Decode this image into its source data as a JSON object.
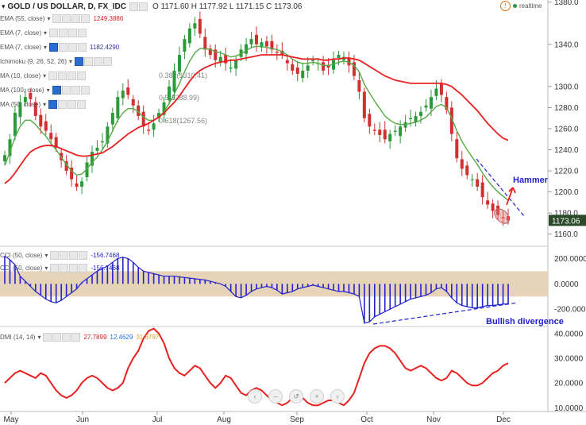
{
  "header": {
    "symbol": "GOLD / US DOLLAR, D, FX_IDC",
    "ohlc": "O 1171.60 H 1177.92 L 1171.15 C 1173.06",
    "realtime": "realtime"
  },
  "indicators": [
    {
      "name": "EMA (55, close)",
      "value": "1249.3886",
      "color": "#dd2222"
    },
    {
      "name": "EMA (7, close)",
      "value": "",
      "color": "#333333"
    },
    {
      "name": "EMA (7, close)",
      "value": "1182.4290",
      "color": "#333399"
    },
    {
      "name": "Ichimoku (9, 26, 52, 26)",
      "value": "",
      "color": "#333333"
    },
    {
      "name": "MA (10, close)",
      "value": "",
      "color": "#333333"
    },
    {
      "name": "MA (100, close)",
      "value": "",
      "color": "#333333"
    },
    {
      "name": "MA (50, close)",
      "value": "",
      "color": "#333333"
    }
  ],
  "cci_indicators": [
    {
      "name": "CCI (50, close)",
      "value": "-156.7468"
    },
    {
      "name": "CCI (50, close)",
      "value": "-156.7468"
    }
  ],
  "dmi_indicator": {
    "name": "DMI (14, 14)",
    "values": [
      "27.7899",
      "12.4629",
      "31.6797"
    ],
    "colors": [
      "#dd2222",
      "#2277dd",
      "#e8a020"
    ]
  },
  "annotations": {
    "hammer": "Hammer",
    "bullish": "Bullish divergence",
    "fib1": "0.382(1310.41)",
    "fib2": "0.5(1288.99)",
    "fib3": "0.618(1267.56)"
  },
  "last_price": "1173.06",
  "colors": {
    "bull": "#2a9a3a",
    "bear": "#d03030",
    "ema55": "#e82020",
    "ema_green": "#55aa44",
    "ema_blue": "#3344aa",
    "cci": "#2222cc",
    "dmi": "#e82020",
    "band": "#e6d3b8"
  },
  "chart_data": [
    {
      "type": "candlestick",
      "title": "GOLD / US DOLLAR, D, FX_IDC",
      "x_labels": [
        "May",
        "Jun",
        "Jul",
        "Aug",
        "Sep",
        "Oct",
        "Nov",
        "Dec"
      ],
      "y_ticks": [
        1160.0,
        1180.0,
        1200.0,
        1220.0,
        1240.0,
        1260.0,
        1280.0,
        1300.0,
        1340.0,
        1380.0
      ],
      "ylim": [
        1150,
        1382
      ],
      "ohlc_last": {
        "open": 1171.6,
        "high": 1177.92,
        "low": 1171.15,
        "close": 1173.06
      },
      "close_series": [
        1235,
        1250,
        1275,
        1285,
        1290,
        1288,
        1272,
        1262,
        1258,
        1250,
        1242,
        1230,
        1220,
        1212,
        1205,
        1210,
        1228,
        1238,
        1242,
        1248,
        1262,
        1275,
        1290,
        1296,
        1292,
        1282,
        1272,
        1262,
        1258,
        1265,
        1275,
        1285,
        1300,
        1315,
        1330,
        1345,
        1355,
        1360,
        1350,
        1335,
        1330,
        1325,
        1328,
        1322,
        1318,
        1325,
        1335,
        1340,
        1345,
        1340,
        1342,
        1338,
        1335,
        1332,
        1330,
        1322,
        1315,
        1312,
        1315,
        1320,
        1325,
        1322,
        1315,
        1318,
        1325,
        1330,
        1328,
        1320,
        1310,
        1295,
        1270,
        1262,
        1258,
        1254,
        1250,
        1255,
        1258,
        1262,
        1266,
        1270,
        1272,
        1276,
        1282,
        1290,
        1298,
        1292,
        1278,
        1255,
        1232,
        1222,
        1216,
        1212,
        1205,
        1195,
        1188,
        1182,
        1178,
        1175,
        1173
      ],
      "ema55_series": [
        1208,
        1212,
        1218,
        1225,
        1232,
        1238,
        1241,
        1243,
        1244,
        1244,
        1243,
        1241,
        1239,
        1237,
        1235,
        1234,
        1234,
        1235,
        1236,
        1237,
        1240,
        1243,
        1247,
        1251,
        1255,
        1258,
        1261,
        1263,
        1265,
        1268,
        1271,
        1275,
        1280,
        1285,
        1291,
        1298,
        1305,
        1311,
        1315,
        1318,
        1320,
        1322,
        1323,
        1324,
        1325,
        1325,
        1326,
        1327,
        1328,
        1329,
        1330,
        1330,
        1330,
        1330,
        1330,
        1329,
        1328,
        1327,
        1326,
        1326,
        1326,
        1326,
        1325,
        1325,
        1326,
        1326,
        1327,
        1327,
        1326,
        1325,
        1322,
        1319,
        1316,
        1313,
        1310,
        1308,
        1306,
        1305,
        1304,
        1303,
        1303,
        1303,
        1303,
        1303,
        1303,
        1303,
        1302,
        1300,
        1296,
        1292,
        1287,
        1282,
        1277,
        1271,
        1265,
        1260,
        1255,
        1251,
        1249
      ],
      "ema_green_series": [
        1225,
        1238,
        1252,
        1262,
        1268,
        1268,
        1264,
        1258,
        1253,
        1246,
        1240,
        1233,
        1226,
        1220,
        1216,
        1217,
        1222,
        1228,
        1233,
        1240,
        1248,
        1258,
        1268,
        1275,
        1279,
        1279,
        1276,
        1271,
        1268,
        1268,
        1271,
        1276,
        1284,
        1293,
        1303,
        1314,
        1324,
        1332,
        1336,
        1336,
        1335,
        1333,
        1332,
        1330,
        1328,
        1329,
        1331,
        1334,
        1337,
        1338,
        1338,
        1337,
        1336,
        1335,
        1333,
        1330,
        1326,
        1323,
        1322,
        1322,
        1323,
        1322,
        1320,
        1320,
        1321,
        1323,
        1324,
        1323,
        1320,
        1314,
        1302,
        1294,
        1286,
        1279,
        1272,
        1268,
        1265,
        1264,
        1264,
        1265,
        1266,
        1268,
        1271,
        1276,
        1281,
        1283,
        1280,
        1270,
        1258,
        1248,
        1240,
        1233,
        1226,
        1218,
        1211,
        1205,
        1200,
        1196,
        1192
      ]
    },
    {
      "type": "bar",
      "title": "CCI (50, close)",
      "y_ticks": [
        200.0,
        0.0,
        -200.0
      ],
      "ylim": [
        -330,
        290
      ],
      "band": [
        -100,
        100
      ],
      "values": [
        220,
        190,
        150,
        60,
        20,
        -20,
        -60,
        -90,
        -120,
        -140,
        -150,
        -130,
        -100,
        -70,
        -40,
        10,
        40,
        70,
        100,
        120,
        140,
        170,
        200,
        210,
        200,
        170,
        130,
        100,
        90,
        80,
        70,
        60,
        60,
        60,
        55,
        50,
        45,
        40,
        35,
        30,
        20,
        10,
        0,
        -20,
        -60,
        -100,
        -110,
        -90,
        -60,
        -40,
        -30,
        -20,
        -30,
        -50,
        -80,
        -70,
        -60,
        -40,
        -30,
        -20,
        -10,
        -20,
        -30,
        -40,
        -50,
        -60,
        -60,
        -70,
        -80,
        -100,
        -310,
        -300,
        -260,
        -240,
        -220,
        -200,
        -180,
        -160,
        -140,
        -120,
        -110,
        -100,
        -90,
        -70,
        -40,
        -30,
        -60,
        -110,
        -150,
        -170,
        -180,
        -190,
        -190,
        -180,
        -170,
        -170,
        -165,
        -160,
        -157
      ]
    },
    {
      "type": "line",
      "title": "DMI (14, 14)",
      "y_ticks": [
        40.0,
        30.0,
        20.0,
        10.0
      ],
      "ylim": [
        8.5,
        42.5
      ],
      "series": [
        {
          "name": "DMI (14, 14)",
          "values": [
            20,
            22,
            24,
            25,
            24,
            23,
            22,
            24,
            23,
            20,
            17,
            15,
            14,
            15,
            17,
            20,
            22,
            23,
            22,
            20,
            18,
            17,
            18,
            20,
            26,
            30,
            33,
            38,
            41,
            42,
            40,
            36,
            30,
            26,
            24,
            23,
            25,
            27,
            26,
            23,
            20,
            18,
            20,
            23,
            22,
            19,
            16,
            15,
            17,
            18,
            17,
            15,
            13,
            12,
            11,
            12,
            14,
            15,
            14,
            12,
            11,
            11,
            12,
            13,
            13,
            12,
            11,
            13,
            16,
            22,
            28,
            32,
            34,
            35,
            35,
            34,
            32,
            29,
            26,
            25,
            26,
            27,
            26,
            24,
            22,
            21,
            22,
            25,
            24,
            22,
            20,
            19,
            19,
            20,
            22,
            24,
            25,
            27,
            28
          ]
        }
      ]
    }
  ]
}
